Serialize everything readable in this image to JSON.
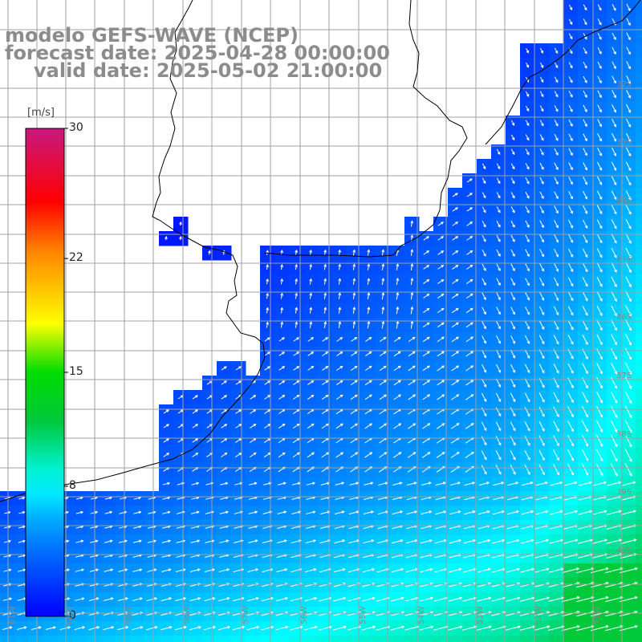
{
  "title": {
    "line1": "modelo GEFS-WAVE (NCEP)",
    "line2": "forecast date: 2025-04-28 00:00:00",
    "line3": "valid date: 2025-05-02 21:00:00"
  },
  "colorbar": {
    "unit": "[m/s]",
    "min": 0,
    "max": 30,
    "ticks": [
      "30",
      "22",
      "15",
      "8",
      "0"
    ],
    "tick_values": [
      30,
      22,
      15,
      8,
      0
    ],
    "colors": [
      "#0000ff",
      "#00bfff",
      "#00ffff",
      "#00d000",
      "#ffff00",
      "#ff8000",
      "#ff0000",
      "#ff0066",
      "#c8187f"
    ]
  },
  "grid": {
    "lat_labels": [
      "32S",
      "33S",
      "34S",
      "35S",
      "36S",
      "37S",
      "38S",
      "39S",
      "40S"
    ],
    "lon_labels": [
      "61W",
      "60W",
      "59W",
      "58W",
      "57W",
      "56W",
      "55W",
      "54W",
      "53W",
      "52W",
      "51W"
    ]
  },
  "map_colors": {
    "land": "#ffffff",
    "coastline": "#000000",
    "gridline": "#a0a0a0",
    "arrow": "#ffffff"
  }
}
